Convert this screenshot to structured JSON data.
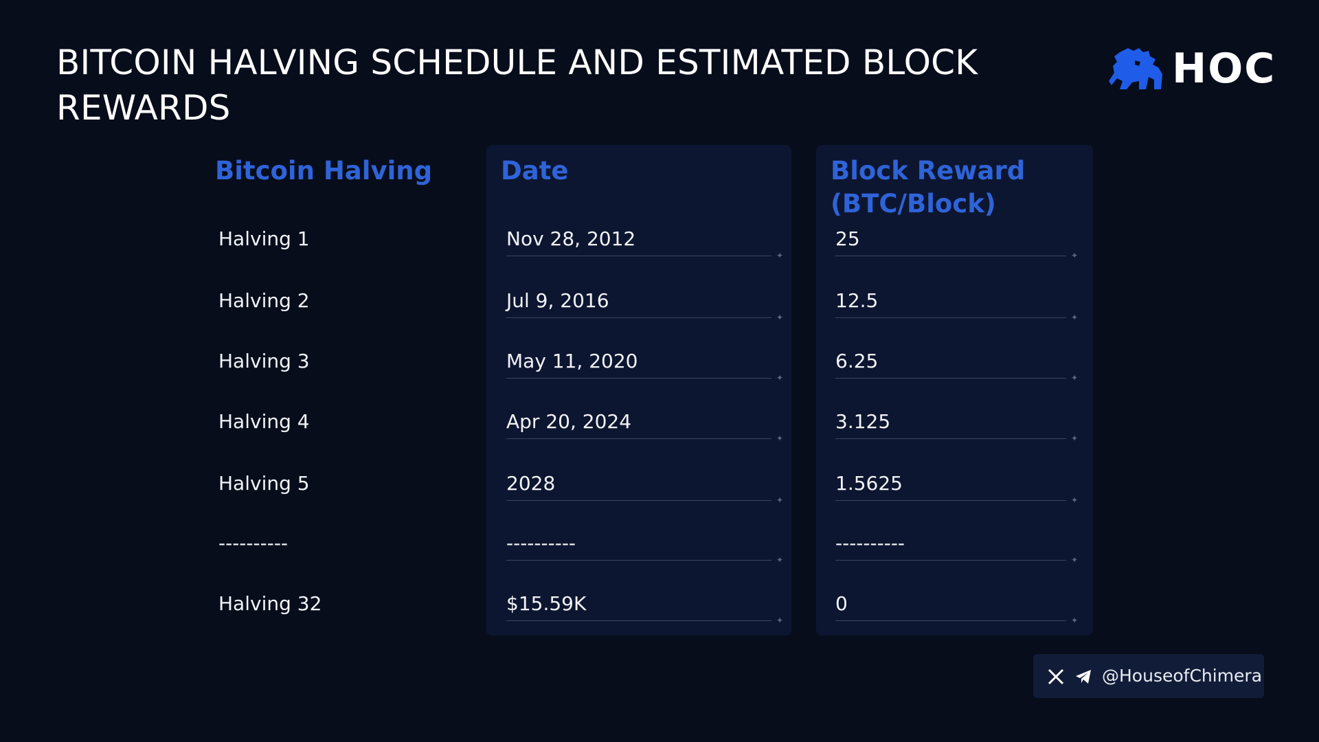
{
  "title": "BITCOIN HALVING SCHEDULE AND ESTIMATED BLOCK REWARDS",
  "logo": {
    "text": "HOC",
    "icon": "lion-icon",
    "accent_color": "#1f5de8"
  },
  "table": {
    "headers": {
      "halving": "Bitcoin Halving",
      "date": "Date",
      "reward": "Block Reward (BTC/Block)"
    },
    "rows": [
      {
        "halving": "Halving 1",
        "date": "Nov 28, 2012",
        "reward": "25"
      },
      {
        "halving": "Halving 2",
        "date": "Jul 9, 2016",
        "reward": "12.5"
      },
      {
        "halving": "Halving 3",
        "date": "May 11, 2020",
        "reward": "6.25"
      },
      {
        "halving": "Halving 4",
        "date": "Apr 20, 2024",
        "reward": "3.125"
      },
      {
        "halving": "Halving 5",
        "date": "2028",
        "reward": "1.5625"
      },
      {
        "halving": "----------",
        "date": "----------",
        "reward": "----------"
      },
      {
        "halving": "Halving 32",
        "date": "$15.59K",
        "reward": "0"
      }
    ],
    "header_color": "#2f63d8"
  },
  "social": {
    "handle": "@HouseofChimera",
    "icons": [
      "x-icon",
      "telegram-icon"
    ]
  }
}
